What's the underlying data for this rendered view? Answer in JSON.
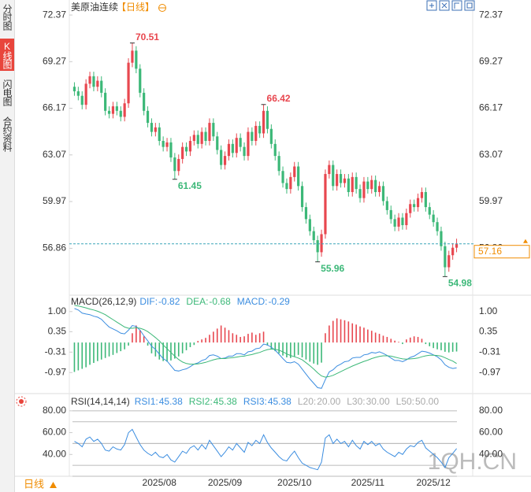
{
  "header": {
    "title": "美原油连续",
    "period": "【日线】"
  },
  "sidebar": [
    "分时图",
    "K线图",
    "闪电图",
    "合约资料"
  ],
  "footer": {
    "period": "日线"
  },
  "watermark": "1QH.CN",
  "chart_data": [
    {
      "type": "candlestick",
      "up_color": "#e8474f",
      "down_color": "#3cb878",
      "categories": [
        null,
        null,
        null,
        null,
        null,
        null,
        null,
        null,
        null,
        null,
        null,
        null,
        null,
        null,
        null,
        null,
        null,
        null,
        null,
        null,
        null,
        null,
        "2025/08",
        null,
        null,
        null,
        null,
        null,
        null,
        null,
        null,
        null,
        null,
        null,
        null,
        null,
        null,
        null,
        null,
        "2025/09",
        null,
        null,
        null,
        null,
        null,
        null,
        null,
        null,
        null,
        null,
        null,
        null,
        null,
        null,
        null,
        null,
        null,
        "2025/10",
        null,
        null,
        null,
        null,
        null,
        null,
        null,
        null,
        null,
        null,
        null,
        null,
        null,
        null,
        null,
        null,
        null,
        null,
        "2025/11",
        null,
        null,
        null,
        null,
        null,
        null,
        null,
        null,
        null,
        null,
        null,
        null,
        null,
        null,
        null,
        null,
        "2025/12",
        null,
        null,
        null,
        null,
        null,
        null
      ],
      "open": [
        67.6,
        67.3,
        67.0,
        66.4,
        67.8,
        68.3,
        67.6,
        68.0,
        67.2,
        66.0,
        65.8,
        66.3,
        66.0,
        65.6,
        66.5,
        69.2,
        70.0,
        68.8,
        67.2,
        66.0,
        65.2,
        64.6,
        64.9,
        64.0,
        63.6,
        63.9,
        62.9,
        62.0,
        62.8,
        63.6,
        63.3,
        64.0,
        64.4,
        63.8,
        64.6,
        64.0,
        65.2,
        64.3,
        63.4,
        62.4,
        63.0,
        63.8,
        63.2,
        64.2,
        63.6,
        63.0,
        64.6,
        64.0,
        65.0,
        64.5,
        66.0,
        64.8,
        63.8,
        63.0,
        62.0,
        61.2,
        60.8,
        61.6,
        62.3,
        61.0,
        59.6,
        58.8,
        58.0,
        57.4,
        56.6,
        57.8,
        61.8,
        62.4,
        61.0,
        61.8,
        61.2,
        61.5,
        60.6,
        61.6,
        60.8,
        60.2,
        61.3,
        60.8,
        61.4,
        60.6,
        61.0,
        60.0,
        59.4,
        58.8,
        58.3,
        58.9,
        58.4,
        59.2,
        59.8,
        59.6,
        60.2,
        60.6,
        59.6,
        59.1,
        58.6,
        58.0,
        57.0,
        55.6,
        56.4,
        56.9
      ],
      "high": [
        67.9,
        67.6,
        67.3,
        68.1,
        68.6,
        68.6,
        68.3,
        68.3,
        67.5,
        66.3,
        66.6,
        66.6,
        66.3,
        66.8,
        69.5,
        70.51,
        70.3,
        69.1,
        67.5,
        66.3,
        65.5,
        65.2,
        65.2,
        64.3,
        64.2,
        64.2,
        63.2,
        63.1,
        63.9,
        63.9,
        64.3,
        64.7,
        64.7,
        64.9,
        64.9,
        65.5,
        65.5,
        64.6,
        63.7,
        63.3,
        64.1,
        64.1,
        64.5,
        64.5,
        63.9,
        64.9,
        64.9,
        65.3,
        65.3,
        66.42,
        66.3,
        65.1,
        64.1,
        63.3,
        62.3,
        61.5,
        61.9,
        62.6,
        62.6,
        61.3,
        59.9,
        59.1,
        58.3,
        57.7,
        58.1,
        62.1,
        62.7,
        62.7,
        62.1,
        62.1,
        61.8,
        61.8,
        61.9,
        61.9,
        61.1,
        61.6,
        61.6,
        61.7,
        61.7,
        61.3,
        61.3,
        60.3,
        59.7,
        59.1,
        59.2,
        59.2,
        59.5,
        60.1,
        60.1,
        60.5,
        60.9,
        60.9,
        59.9,
        59.4,
        58.9,
        58.3,
        57.3,
        56.7,
        57.2,
        57.5
      ],
      "low": [
        67.0,
        66.7,
        66.1,
        66.1,
        67.5,
        67.3,
        67.3,
        66.9,
        65.7,
        65.5,
        65.5,
        65.7,
        65.3,
        65.3,
        66.2,
        68.9,
        68.5,
        66.9,
        65.7,
        64.9,
        64.3,
        64.3,
        63.7,
        63.3,
        63.3,
        62.6,
        61.45,
        61.7,
        62.5,
        63.0,
        63.0,
        63.7,
        63.5,
        63.5,
        63.7,
        63.7,
        64.0,
        63.1,
        62.1,
        62.1,
        62.7,
        62.9,
        62.9,
        63.3,
        62.7,
        62.7,
        63.7,
        63.7,
        64.2,
        64.2,
        64.5,
        63.5,
        62.7,
        61.7,
        60.9,
        60.5,
        60.5,
        61.3,
        60.7,
        59.3,
        58.5,
        57.7,
        57.1,
        55.96,
        56.3,
        57.5,
        61.5,
        60.7,
        60.7,
        60.9,
        60.9,
        60.3,
        60.3,
        60.5,
        59.9,
        59.9,
        60.5,
        60.5,
        60.3,
        60.3,
        59.7,
        59.1,
        58.5,
        58.0,
        58.0,
        58.1,
        58.1,
        58.9,
        59.3,
        59.3,
        59.9,
        59.3,
        58.8,
        58.3,
        57.7,
        56.7,
        54.98,
        55.3,
        56.1,
        56.6
      ],
      "close": [
        67.3,
        67.0,
        66.4,
        67.8,
        68.3,
        67.6,
        68.0,
        67.2,
        66.0,
        65.8,
        66.3,
        66.0,
        65.6,
        66.5,
        69.2,
        70.0,
        68.8,
        67.2,
        66.0,
        65.2,
        64.6,
        64.9,
        64.0,
        63.6,
        63.9,
        62.9,
        62.0,
        62.8,
        63.6,
        63.3,
        64.0,
        64.4,
        63.8,
        64.6,
        64.0,
        65.2,
        64.3,
        63.4,
        62.4,
        63.0,
        63.8,
        63.2,
        64.2,
        63.6,
        63.0,
        64.6,
        64.0,
        65.0,
        64.5,
        66.0,
        64.8,
        63.8,
        63.0,
        62.0,
        61.2,
        60.8,
        61.6,
        62.3,
        61.0,
        59.6,
        58.8,
        58.0,
        57.4,
        56.6,
        57.8,
        61.8,
        62.4,
        61.0,
        61.8,
        61.2,
        61.5,
        60.6,
        61.6,
        60.8,
        60.2,
        61.3,
        60.8,
        61.4,
        60.6,
        61.0,
        60.0,
        59.4,
        58.8,
        58.3,
        58.9,
        58.4,
        59.2,
        59.8,
        59.6,
        60.2,
        60.6,
        59.6,
        59.1,
        58.6,
        58.0,
        57.0,
        55.6,
        56.4,
        56.9,
        57.16
      ],
      "ylim": [
        53.9,
        72.95
      ],
      "yticks": [
        72.37,
        69.27,
        66.17,
        63.07,
        59.97,
        56.86
      ],
      "labeled_highs": [
        15,
        49
      ],
      "labeled_lows": [
        26,
        63,
        96
      ],
      "last_price_color": "#f08c00",
      "last_line_color": "#3aa6b9"
    },
    {
      "type": "macd",
      "title": "MACD(26,12,9)",
      "dif": {
        "name": "DIF:",
        "color": "#3b8de0",
        "values": [
          1.1,
          1.05,
          0.95,
          0.92,
          0.9,
          0.85,
          0.82,
          0.75,
          0.62,
          0.5,
          0.44,
          0.38,
          0.3,
          0.28,
          0.4,
          0.55,
          0.52,
          0.4,
          0.22,
          0.05,
          -0.12,
          -0.22,
          -0.38,
          -0.52,
          -0.6,
          -0.75,
          -0.9,
          -0.92,
          -0.88,
          -0.85,
          -0.78,
          -0.7,
          -0.66,
          -0.58,
          -0.54,
          -0.42,
          -0.4,
          -0.44,
          -0.52,
          -0.5,
          -0.44,
          -0.44,
          -0.36,
          -0.36,
          -0.4,
          -0.3,
          -0.28,
          -0.2,
          -0.18,
          -0.05,
          -0.08,
          -0.15,
          -0.25,
          -0.38,
          -0.52,
          -0.64,
          -0.66,
          -0.62,
          -0.7,
          -0.86,
          -1.02,
          -1.18,
          -1.32,
          -1.46,
          -1.48,
          -1.2,
          -0.95,
          -0.88,
          -0.76,
          -0.7,
          -0.62,
          -0.6,
          -0.5,
          -0.48,
          -0.48,
          -0.4,
          -0.38,
          -0.32,
          -0.34,
          -0.3,
          -0.35,
          -0.42,
          -0.5,
          -0.58,
          -0.58,
          -0.62,
          -0.56,
          -0.48,
          -0.44,
          -0.36,
          -0.28,
          -0.3,
          -0.34,
          -0.4,
          -0.46,
          -0.56,
          -0.72,
          -0.8,
          -0.84,
          -0.82
        ]
      },
      "dea": {
        "name": "DEA:",
        "color": "#3cb878",
        "values": [
          1.2,
          1.18,
          1.15,
          1.12,
          1.08,
          1.05,
          1.01,
          0.96,
          0.9,
          0.82,
          0.74,
          0.66,
          0.58,
          0.5,
          0.46,
          0.46,
          0.48,
          0.46,
          0.42,
          0.35,
          0.26,
          0.16,
          0.05,
          -0.08,
          -0.2,
          -0.32,
          -0.44,
          -0.55,
          -0.63,
          -0.68,
          -0.7,
          -0.7,
          -0.69,
          -0.67,
          -0.64,
          -0.6,
          -0.56,
          -0.53,
          -0.52,
          -0.52,
          -0.5,
          -0.49,
          -0.47,
          -0.45,
          -0.44,
          -0.41,
          -0.39,
          -0.35,
          -0.32,
          -0.27,
          -0.23,
          -0.21,
          -0.22,
          -0.25,
          -0.3,
          -0.37,
          -0.42,
          -0.46,
          -0.5,
          -0.56,
          -0.65,
          -0.75,
          -0.86,
          -0.98,
          -1.08,
          -1.12,
          -1.1,
          -1.06,
          -1.0,
          -0.94,
          -0.88,
          -0.82,
          -0.76,
          -0.71,
          -0.66,
          -0.61,
          -0.57,
          -0.52,
          -0.48,
          -0.45,
          -0.43,
          -0.43,
          -0.44,
          -0.47,
          -0.5,
          -0.53,
          -0.54,
          -0.53,
          -0.52,
          -0.5,
          -0.46,
          -0.43,
          -0.41,
          -0.41,
          -0.42,
          -0.44,
          -0.49,
          -0.55,
          -0.6,
          -0.68
        ]
      },
      "hist": {
        "name": "MACD:",
        "color": "#3b8de0",
        "up_color": "#e8474f",
        "down_color": "#3cb878",
        "values": [
          -0.95,
          -0.9,
          -0.85,
          -0.8,
          -0.72,
          -0.66,
          -0.6,
          -0.55,
          -0.5,
          -0.45,
          -0.4,
          -0.34,
          -0.28,
          -0.22,
          -0.1,
          0.3,
          0.55,
          0.4,
          0.2,
          -0.1,
          -0.35,
          -0.45,
          -0.55,
          -0.6,
          -0.62,
          -0.58,
          -0.52,
          -0.45,
          -0.35,
          -0.25,
          -0.15,
          -0.08,
          0.05,
          0.1,
          0.15,
          0.25,
          0.35,
          0.45,
          0.55,
          0.48,
          0.4,
          0.3,
          0.25,
          0.18,
          0.2,
          0.28,
          0.32,
          0.25,
          0.3,
          0.35,
          -0.1,
          -0.2,
          -0.28,
          -0.35,
          -0.42,
          -0.48,
          -0.5,
          -0.45,
          -0.4,
          -0.48,
          -0.55,
          -0.62,
          -0.68,
          -0.72,
          -0.65,
          0.3,
          0.55,
          0.7,
          0.78,
          0.75,
          0.72,
          0.68,
          0.62,
          0.58,
          0.52,
          0.48,
          0.42,
          0.38,
          0.32,
          0.28,
          0.22,
          0.18,
          0.12,
          0.06,
          0.02,
          -0.05,
          0.1,
          0.16,
          0.2,
          0.18,
          0.12,
          -0.05,
          -0.12,
          -0.18,
          -0.22,
          -0.25,
          -0.3,
          -0.32,
          -0.3,
          -0.29
        ]
      },
      "ylim": [
        -1.6,
        1.3
      ],
      "yticks": [
        {
          "value": 1,
          "label": "1.00"
        },
        0.35,
        -0.31,
        -0.97
      ]
    },
    {
      "type": "rsi",
      "title": "RSI(14,14,14)",
      "line_color": "#3b8de0",
      "readouts": [
        {
          "name": "RSI1:",
          "value": 45.38,
          "color": "#3b8de0"
        },
        {
          "name": "RSI2:",
          "value": 45.38,
          "color": "#3cb878"
        },
        {
          "name": "RSI3:",
          "value": 45.38,
          "color": "#3b8de0"
        }
      ],
      "levels": [
        {
          "name": "L20:",
          "value": 20,
          "value_label": "20.00"
        },
        {
          "name": "L30:",
          "value": 30,
          "value_label": "30.00"
        },
        {
          "name": "L50:",
          "value": 50,
          "value_label": "50.00"
        }
      ],
      "values": [
        52,
        50,
        47,
        54,
        56,
        52,
        54,
        50,
        44,
        43,
        47,
        45,
        44,
        49,
        60,
        63,
        56,
        49,
        44,
        41,
        39,
        42,
        38,
        37,
        40,
        35,
        33,
        38,
        43,
        41,
        46,
        48,
        44,
        49,
        45,
        53,
        48,
        43,
        38,
        42,
        47,
        44,
        50,
        46,
        42,
        51,
        48,
        53,
        50,
        58,
        51,
        46,
        42,
        38,
        35,
        34,
        39,
        43,
        37,
        32,
        30,
        28,
        27,
        26,
        33,
        55,
        58,
        50,
        54,
        50,
        52,
        47,
        53,
        48,
        45,
        52,
        49,
        52,
        48,
        50,
        45,
        42,
        40,
        38,
        42,
        40,
        45,
        48,
        47,
        51,
        53,
        46,
        43,
        40,
        37,
        33,
        28,
        37,
        41,
        45.38
      ],
      "ylim": [
        20,
        90
      ],
      "yticks": [
        {
          "value": 80,
          "label": "80.00"
        },
        {
          "value": 60,
          "label": "60.00"
        },
        {
          "value": 40,
          "label": "40.00"
        }
      ]
    }
  ]
}
